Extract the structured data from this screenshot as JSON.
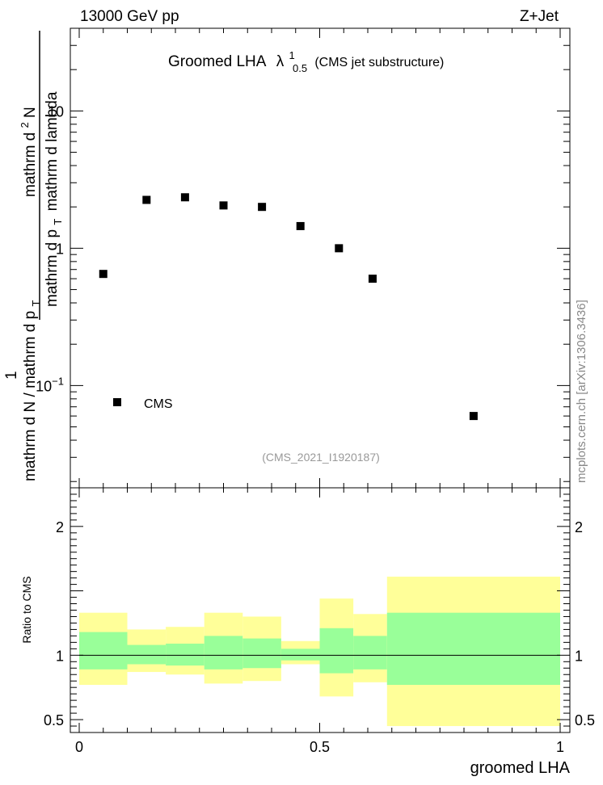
{
  "header": {
    "left_label": "13000 GeV pp",
    "right_label": "Z+Jet"
  },
  "title": {
    "prefix": "Groomed LHA",
    "symbol": "λ",
    "sup": "1",
    "sub": "0.5",
    "suffix": "(CMS jet substructure)"
  },
  "analysis_label": "(CMS_2021_I1920187)",
  "watermark": "mcplots.cern.ch [arXiv:1306.3436]",
  "ylabel": {
    "prefix": "1",
    "part1": "mathrm d N / mathrm d p",
    "sub1": "T",
    "num": "mathrm d",
    "num_sup": "2",
    "num_rest": "N",
    "den_a": "mathrm d p",
    "den_sub": "T",
    "den_b": "mathrm d lambda"
  },
  "colors": {
    "band_inner": "#99ff99",
    "band_outer": "#ffff99",
    "marker": "#000000"
  },
  "chart_data": [
    {
      "type": "scatter",
      "name": "main",
      "yscale": "log",
      "xlim": [
        0,
        1
      ],
      "ylim": [
        0.018,
        40
      ],
      "yticks": [
        {
          "value": 0.1,
          "base": "10",
          "exp": "−1"
        },
        {
          "value": 1,
          "base": "1",
          "exp": ""
        },
        {
          "value": 10,
          "base": "10",
          "exp": ""
        }
      ],
      "legend": {
        "position": "bottom-left",
        "entries": [
          "CMS"
        ]
      },
      "series": [
        {
          "name": "CMS",
          "points": [
            {
              "x": 0.05,
              "y": 0.65
            },
            {
              "x": 0.14,
              "y": 2.25
            },
            {
              "x": 0.22,
              "y": 2.35
            },
            {
              "x": 0.3,
              "y": 2.05
            },
            {
              "x": 0.38,
              "y": 2.0
            },
            {
              "x": 0.46,
              "y": 1.45
            },
            {
              "x": 0.54,
              "y": 1.0
            },
            {
              "x": 0.61,
              "y": 0.6
            },
            {
              "x": 0.82,
              "y": 0.06
            }
          ]
        }
      ]
    },
    {
      "type": "area",
      "name": "ratio",
      "ylabel": "Ratio to CMS",
      "xlabel": "groomed LHA",
      "xlim": [
        0,
        1
      ],
      "ylim": [
        0.4,
        2.3
      ],
      "xticks": [
        {
          "value": 0,
          "label": "0"
        },
        {
          "value": 0.5,
          "label": "0.5"
        },
        {
          "value": 1,
          "label": "1"
        }
      ],
      "yticks": [
        {
          "value": 0.5,
          "label": "0.5"
        },
        {
          "value": 1,
          "label": "1"
        },
        {
          "value": 2,
          "label": "2"
        }
      ],
      "reference_line": 1,
      "bins": [
        {
          "x0": 0.0,
          "x1": 0.1,
          "inner": [
            0.89,
            1.18
          ],
          "outer": [
            0.77,
            1.33
          ]
        },
        {
          "x0": 0.1,
          "x1": 0.18,
          "inner": [
            0.93,
            1.08
          ],
          "outer": [
            0.87,
            1.2
          ]
        },
        {
          "x0": 0.18,
          "x1": 0.26,
          "inner": [
            0.92,
            1.09
          ],
          "outer": [
            0.85,
            1.22
          ]
        },
        {
          "x0": 0.26,
          "x1": 0.34,
          "inner": [
            0.89,
            1.15
          ],
          "outer": [
            0.78,
            1.33
          ]
        },
        {
          "x0": 0.34,
          "x1": 0.42,
          "inner": [
            0.9,
            1.13
          ],
          "outer": [
            0.8,
            1.3
          ]
        },
        {
          "x0": 0.42,
          "x1": 0.5,
          "inner": [
            0.96,
            1.05
          ],
          "outer": [
            0.93,
            1.11
          ]
        },
        {
          "x0": 0.5,
          "x1": 0.57,
          "inner": [
            0.86,
            1.21
          ],
          "outer": [
            0.68,
            1.44
          ]
        },
        {
          "x0": 0.57,
          "x1": 0.64,
          "inner": [
            0.89,
            1.15
          ],
          "outer": [
            0.79,
            1.32
          ]
        },
        {
          "x0": 0.64,
          "x1": 1.0,
          "inner": [
            0.77,
            1.33
          ],
          "outer": [
            0.45,
            1.61
          ]
        }
      ]
    }
  ]
}
